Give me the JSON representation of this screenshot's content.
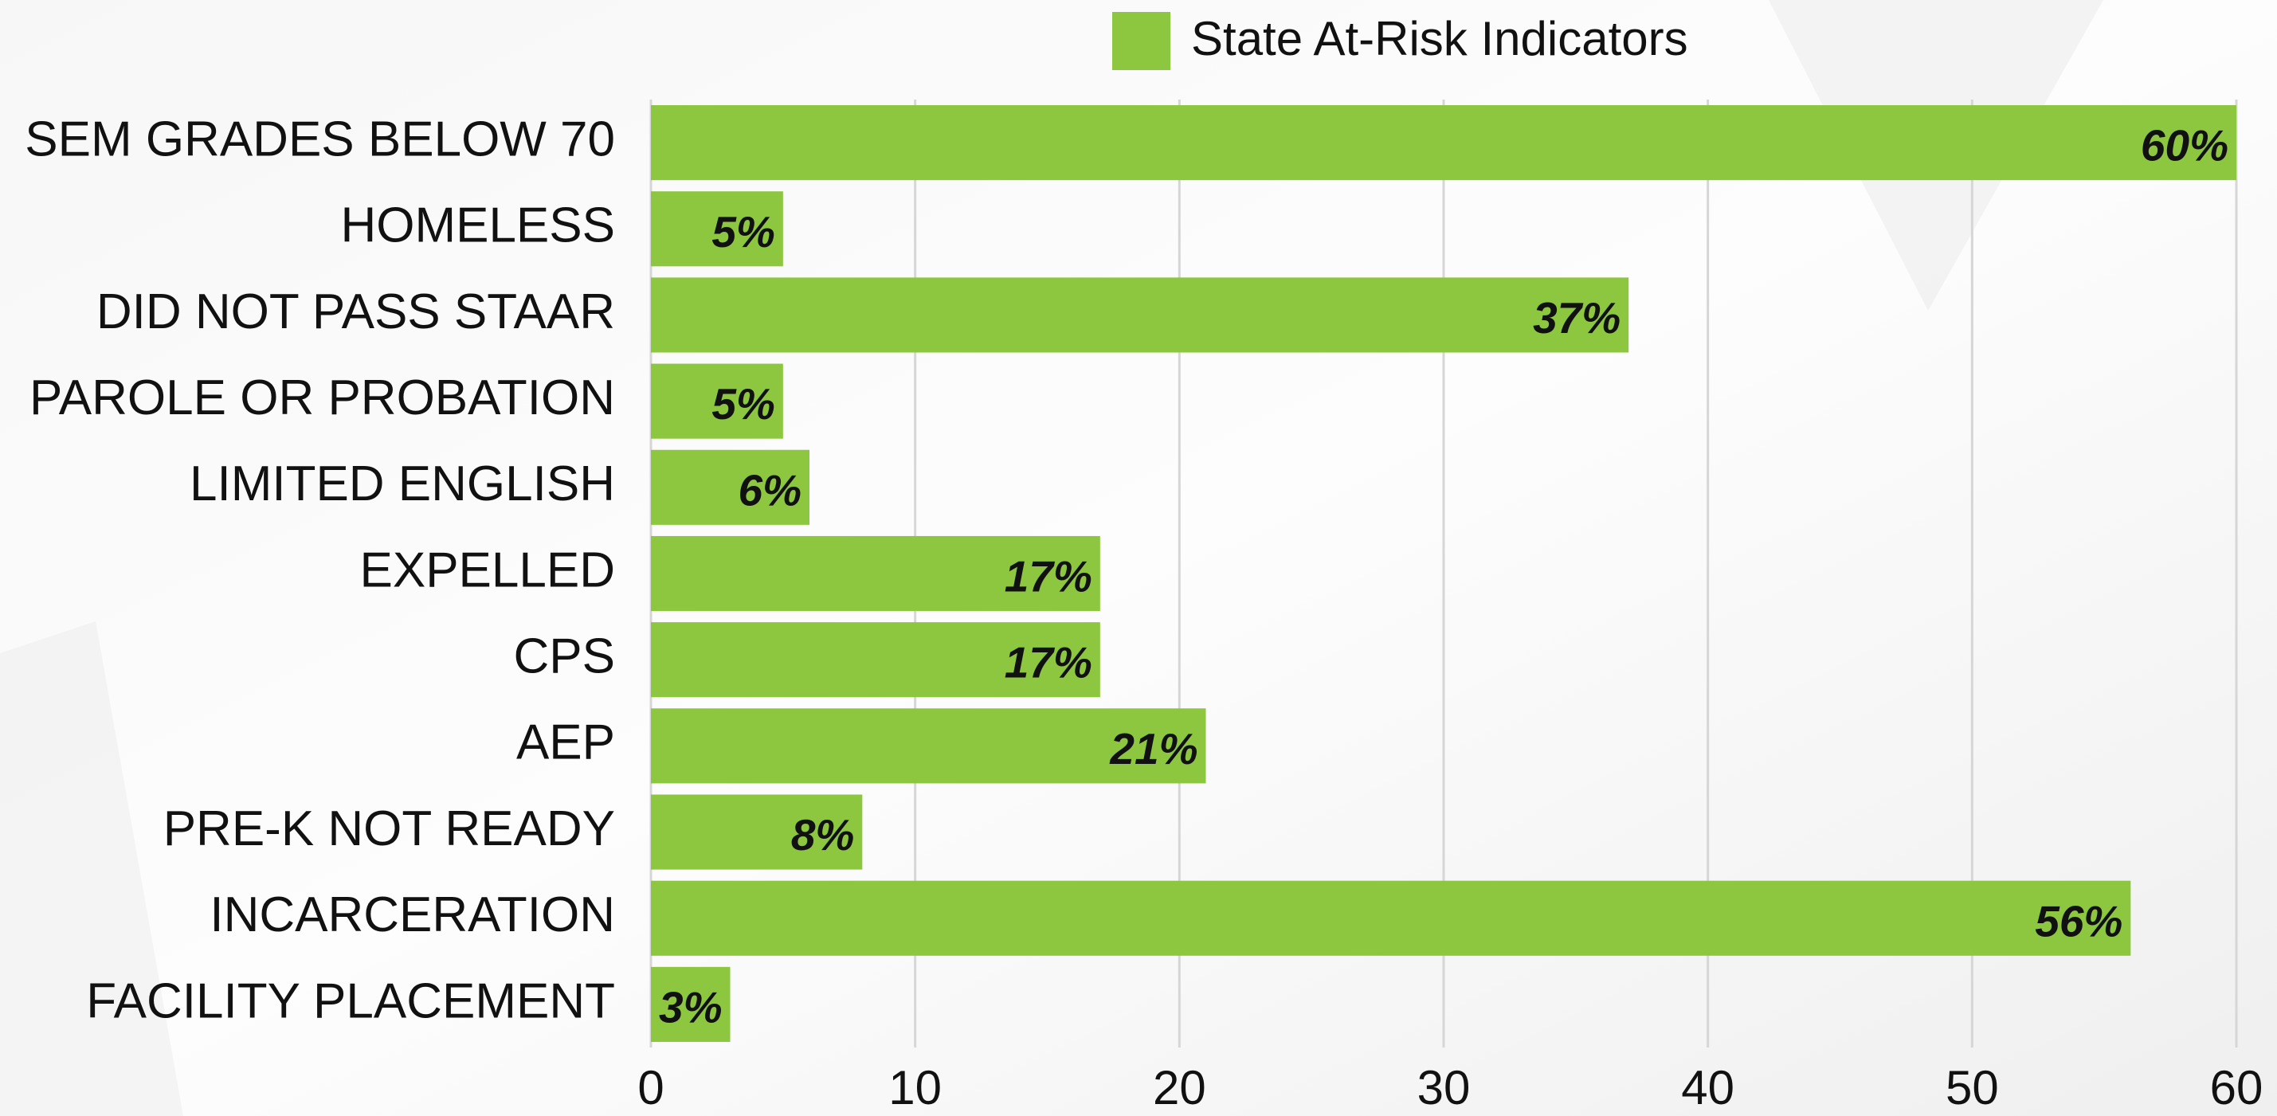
{
  "chart_data": {
    "type": "barh",
    "categories": [
      "SEM GRADES BELOW 70",
      "HOMELESS",
      "DID NOT PASS STAAR",
      "PAROLE OR PROBATION",
      "LIMITED ENGLISH",
      "EXPELLED",
      "CPS",
      "AEP",
      "PRE-K NOT READY",
      "INCARCERATION",
      "FACILITY PLACEMENT"
    ],
    "series": [
      {
        "name": "State At-Risk Indicators",
        "color": "#8dc63f",
        "values": [
          60,
          5,
          37,
          5,
          6,
          17,
          17,
          21,
          8,
          56,
          3
        ],
        "value_labels": [
          "60%",
          "5%",
          "37%",
          "5%",
          "6%",
          "17%",
          "17%",
          "21%",
          "8%",
          "56%",
          "3%"
        ]
      }
    ],
    "xlim": [
      0,
      60
    ],
    "xticks": [
      0,
      10,
      20,
      30,
      40,
      50,
      60
    ],
    "grid": true,
    "legend": "top"
  }
}
